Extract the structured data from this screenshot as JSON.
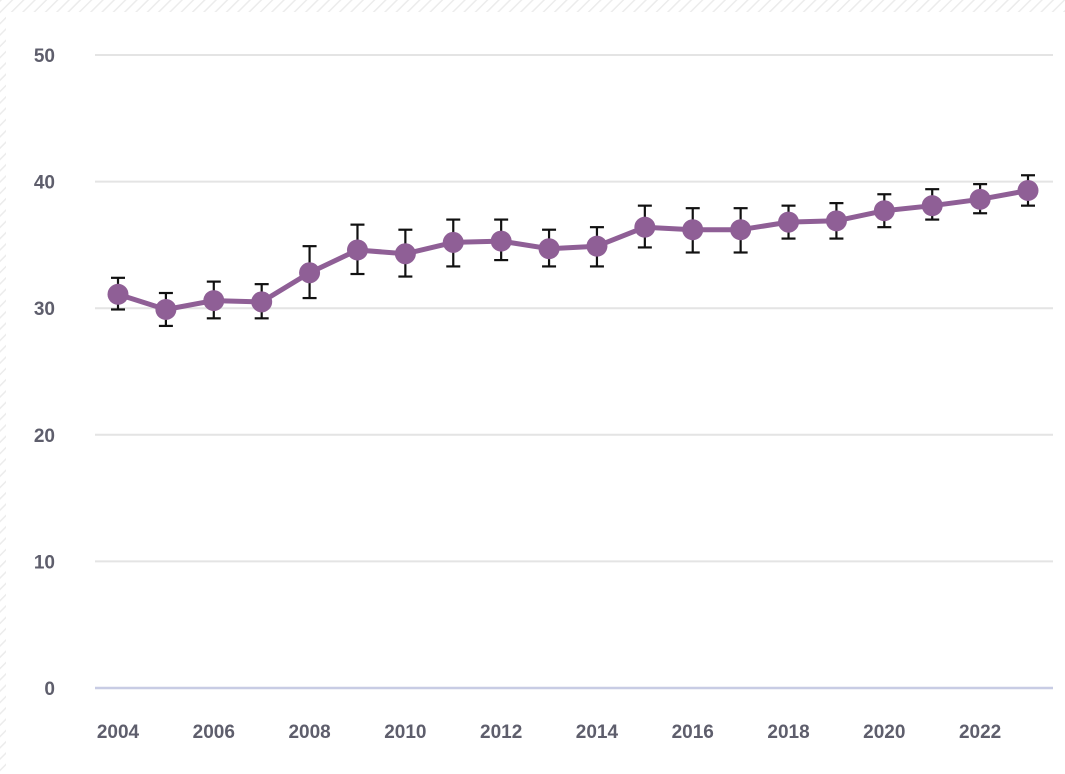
{
  "chart_data": {
    "type": "line",
    "title": "",
    "xlabel": "",
    "ylabel": "",
    "ylim": [
      0,
      50
    ],
    "xlim": [
      2004,
      2023
    ],
    "grid": "horizontal",
    "y_ticks": [
      "0",
      "10",
      "20",
      "30",
      "40",
      "50"
    ],
    "x_ticks": [
      "2004",
      "2006",
      "2008",
      "2010",
      "2012",
      "2014",
      "2016",
      "2018",
      "2020",
      "2022"
    ],
    "colors": {
      "series": "#8f5f96",
      "error_bar": "#111111",
      "grid": "#e4e4e4",
      "baseline": "#c8cce4",
      "tick_text": "#5e5e6c"
    },
    "series": [
      {
        "x": [
          2004,
          2005,
          2006,
          2007,
          2008,
          2009,
          2010,
          2011,
          2012,
          2013,
          2014,
          2015,
          2016,
          2017,
          2018,
          2019,
          2020,
          2021,
          2022,
          2023
        ],
        "values": [
          31.1,
          29.9,
          30.6,
          30.5,
          32.8,
          34.6,
          34.3,
          35.2,
          35.3,
          34.7,
          34.9,
          36.4,
          36.2,
          36.2,
          36.8,
          36.9,
          37.7,
          38.1,
          38.6,
          39.3
        ],
        "error_low": [
          29.9,
          28.6,
          29.2,
          29.2,
          30.8,
          32.7,
          32.5,
          33.3,
          33.8,
          33.3,
          33.3,
          34.8,
          34.4,
          34.4,
          35.5,
          35.5,
          36.4,
          37.0,
          37.5,
          38.1
        ],
        "error_high": [
          32.4,
          31.2,
          32.1,
          31.9,
          34.9,
          36.6,
          36.2,
          37.0,
          37.0,
          36.2,
          36.4,
          38.1,
          37.9,
          37.9,
          38.1,
          38.3,
          39.0,
          39.4,
          39.8,
          40.5
        ]
      }
    ]
  }
}
